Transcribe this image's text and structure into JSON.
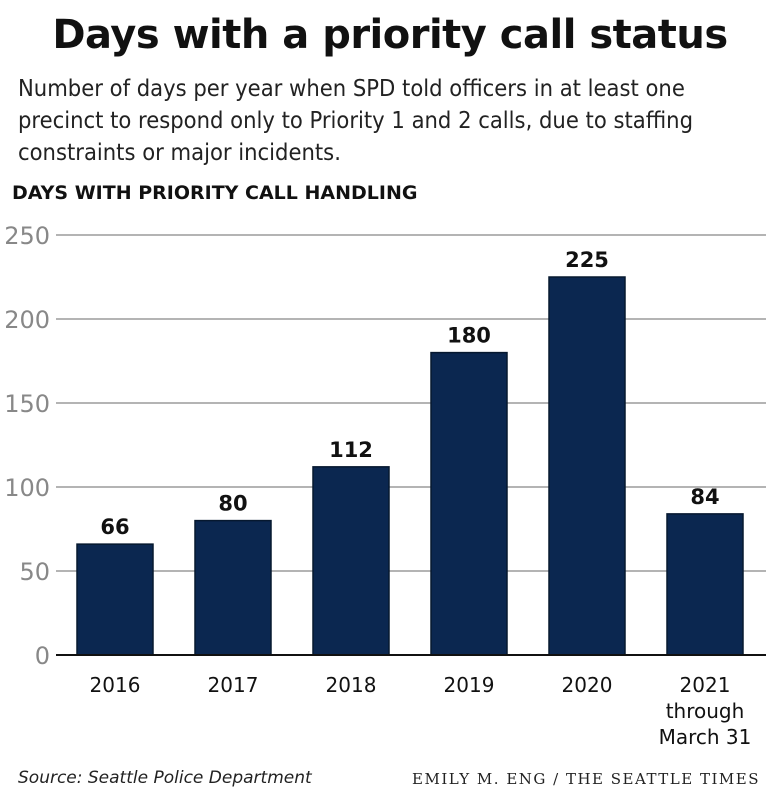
{
  "chart_data": {
    "type": "bar",
    "title": "Days with a priority call status",
    "subtitle": "Number of days per year when SPD told officers in at least one precinct to respond only to Priority 1 and 2 calls, due to staffing constraints or major incidents.",
    "ylabel": "DAYS WITH PRIORITY CALL HANDLING",
    "xlabel": "",
    "categories": [
      [
        "2016"
      ],
      [
        "2017"
      ],
      [
        "2018"
      ],
      [
        "2019"
      ],
      [
        "2020"
      ],
      [
        "2021",
        "through",
        "March 31"
      ]
    ],
    "values": [
      66,
      80,
      112,
      180,
      225,
      84
    ],
    "ylim": [
      0,
      250
    ],
    "yticks": [
      0,
      50,
      100,
      150,
      200,
      250
    ],
    "grid": true,
    "bar_color": "#0b2750"
  },
  "footer": {
    "source": "Source: Seattle Police Department",
    "credit": "EMILY M. ENG / THE SEATTLE TIMES"
  }
}
